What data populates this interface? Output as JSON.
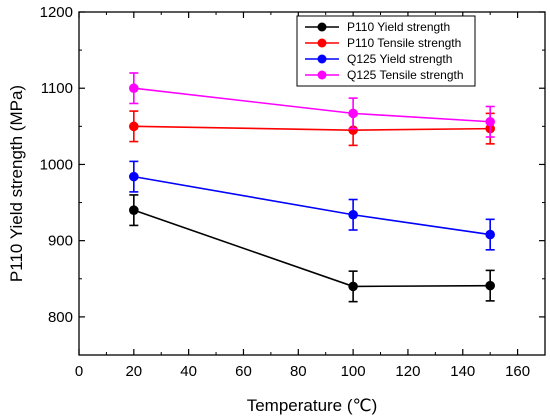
{
  "chart_data": {
    "type": "line",
    "title": "",
    "xlabel": "Temperature (℃)",
    "ylabel": "P110 Yield strength (MPa)",
    "xlim": [
      0,
      170
    ],
    "ylim": [
      750,
      1200
    ],
    "xticks": [
      "0",
      "20",
      "40",
      "60",
      "80",
      "100",
      "120",
      "140",
      "160"
    ],
    "yticks": [
      "800",
      "900",
      "1000",
      "1100",
      "1200"
    ],
    "x": [
      20,
      100,
      150
    ],
    "legend_position": "top-right",
    "grid": false,
    "error_bar": 20,
    "series": [
      {
        "name": "P110 Yield strength",
        "color": "#000000",
        "values": [
          940,
          840,
          841
        ]
      },
      {
        "name": "P110 Tensile strength",
        "color": "#ff0000",
        "values": [
          1050,
          1045,
          1047
        ]
      },
      {
        "name": "Q125 Yield strength",
        "color": "#0000ff",
        "values": [
          984,
          934,
          908
        ]
      },
      {
        "name": "Q125 Tensile strength",
        "color": "#ff00ff",
        "values": [
          1100,
          1067,
          1056
        ]
      }
    ]
  }
}
